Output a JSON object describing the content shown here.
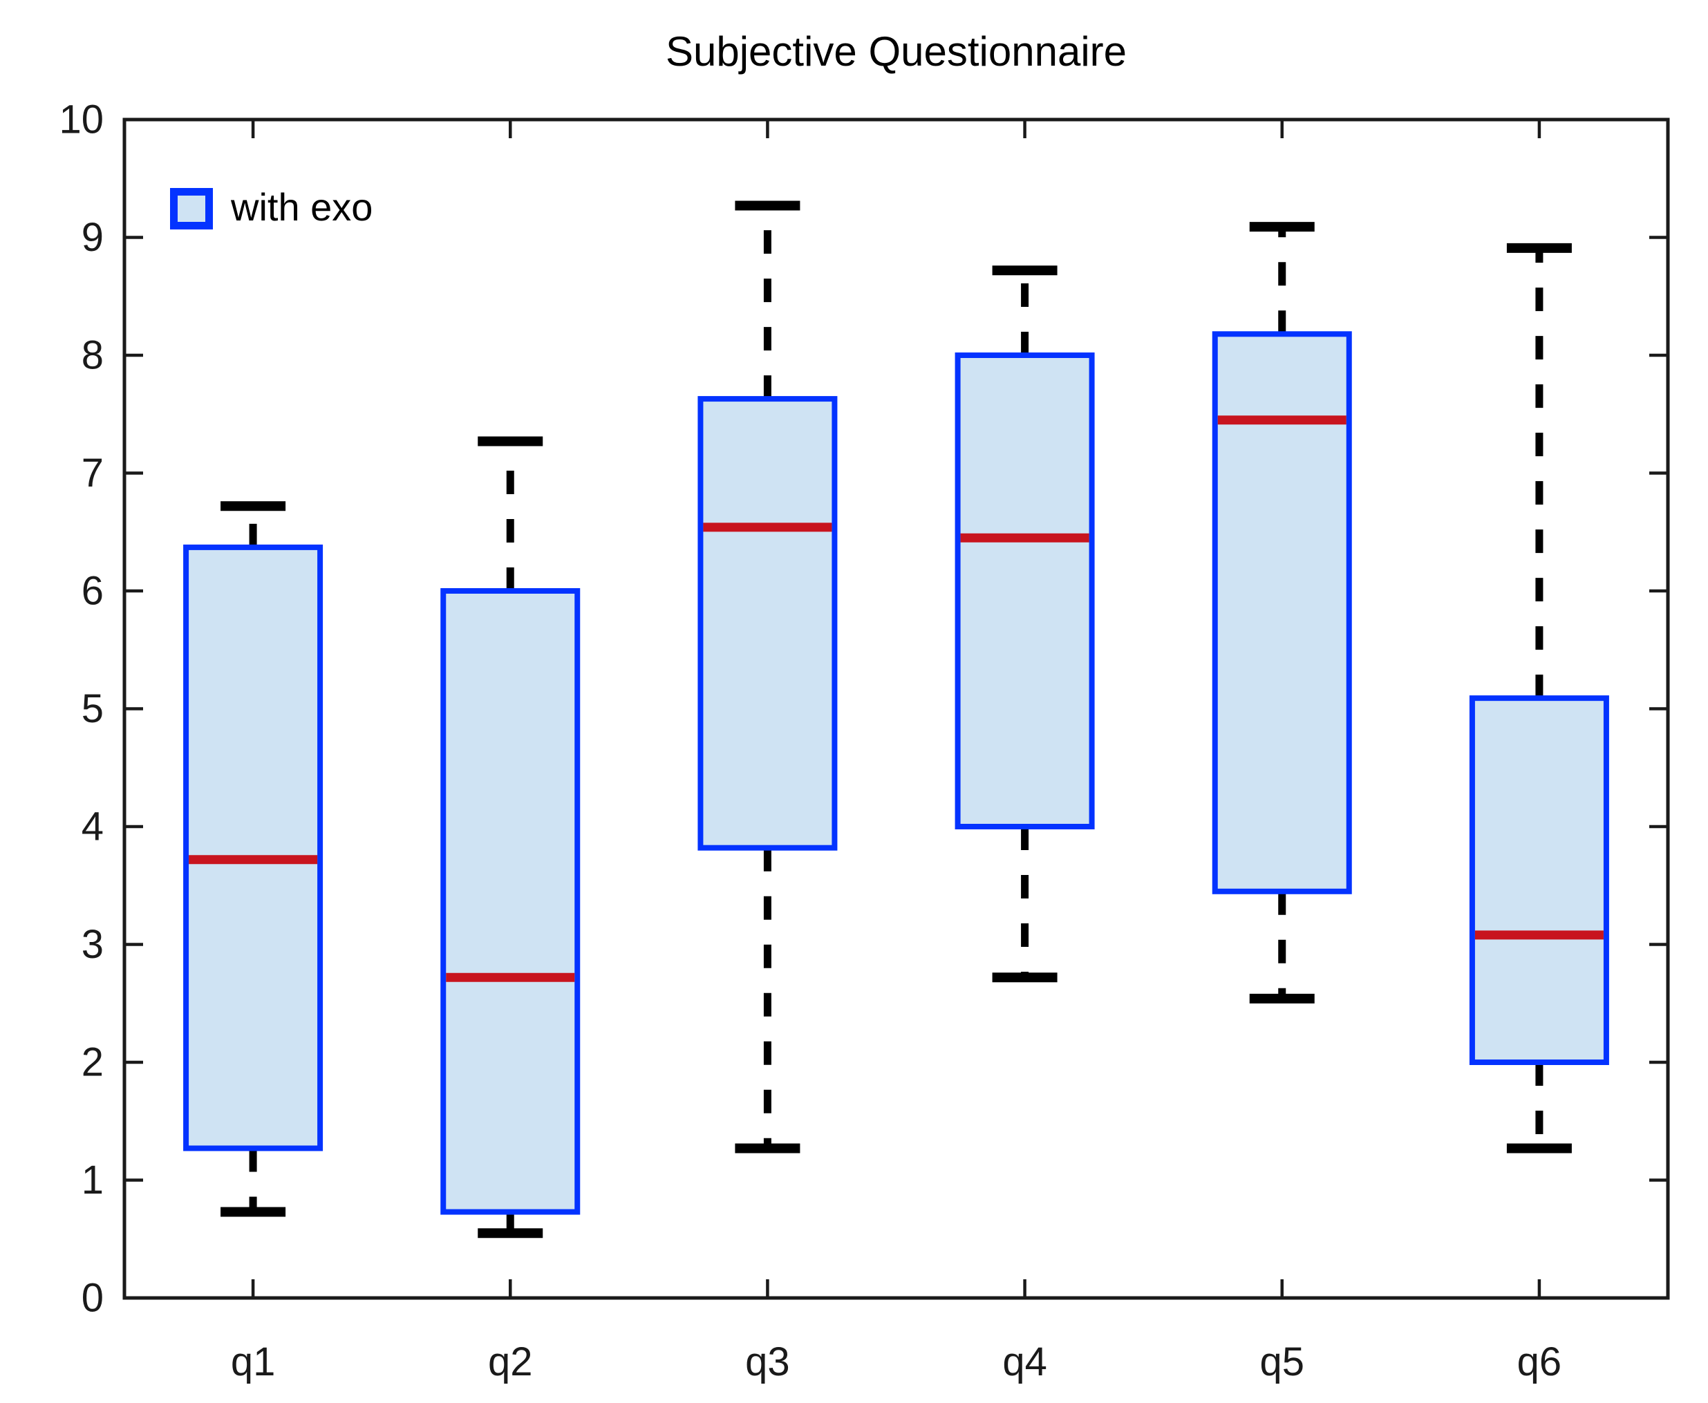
{
  "title": "Subjective Questionnaire",
  "legend": [
    {
      "label": "with exo",
      "swatch_border": "#0433FF",
      "swatch_fill": "#CFE3F3"
    }
  ],
  "colors": {
    "box_border": "#0433FF",
    "box_fill": "#CFE3F3",
    "median": "#C8141E",
    "whisker": "#000000",
    "axis": "#1A1A1A",
    "label_text": "#1A1A1A",
    "background": "#FFFFFF"
  },
  "chart_data": {
    "type": "boxplot",
    "title": "Subjective Questionnaire",
    "xlabel": "",
    "ylabel": "",
    "categories": [
      "q1",
      "q2",
      "q3",
      "q4",
      "q5",
      "q6"
    ],
    "ylim": [
      0,
      10
    ],
    "yticks": [
      0,
      1,
      2,
      3,
      4,
      5,
      6,
      7,
      8,
      9,
      10
    ],
    "grid": false,
    "legend_position": "top-left inside",
    "series": [
      {
        "name": "with exo",
        "boxes": [
          {
            "category": "q1",
            "whisker_low": 0.73,
            "q1": 1.27,
            "median": 3.72,
            "q3": 6.37,
            "whisker_high": 6.72
          },
          {
            "category": "q2",
            "whisker_low": 0.55,
            "q1": 0.73,
            "median": 2.72,
            "q3": 6.0,
            "whisker_high": 7.27
          },
          {
            "category": "q3",
            "whisker_low": 1.27,
            "q1": 3.82,
            "median": 6.54,
            "q3": 7.63,
            "whisker_high": 9.27
          },
          {
            "category": "q4",
            "whisker_low": 2.72,
            "q1": 4.0,
            "median": 6.45,
            "q3": 8.0,
            "whisker_high": 8.72
          },
          {
            "category": "q5",
            "whisker_low": 2.54,
            "q1": 3.45,
            "median": 7.45,
            "q3": 8.18,
            "whisker_high": 9.09
          },
          {
            "category": "q6",
            "whisker_low": 1.27,
            "q1": 2.0,
            "median": 3.08,
            "q3": 5.09,
            "whisker_high": 8.91
          }
        ]
      }
    ]
  }
}
